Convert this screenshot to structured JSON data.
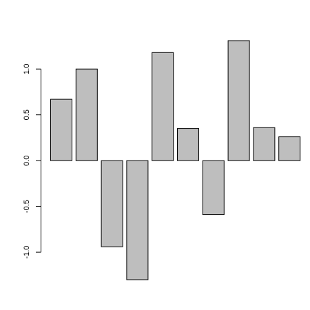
{
  "chart_data": {
    "type": "bar",
    "values": [
      0.67,
      1.0,
      -0.94,
      -1.3,
      1.18,
      0.35,
      -0.59,
      1.31,
      0.36,
      0.26
    ],
    "ylim": [
      -1.3,
      1.31
    ],
    "yticks": [
      -1.0,
      -0.5,
      0.0,
      0.5,
      1.0
    ],
    "ytick_labels": [
      "-1.0",
      "-0.5",
      "0.0",
      "0.5",
      "1.0"
    ],
    "title": "",
    "xlabel": "",
    "ylabel": "",
    "grid": false,
    "colors": {
      "bar_fill": "#bebebe",
      "bar_stroke": "#000000"
    }
  }
}
